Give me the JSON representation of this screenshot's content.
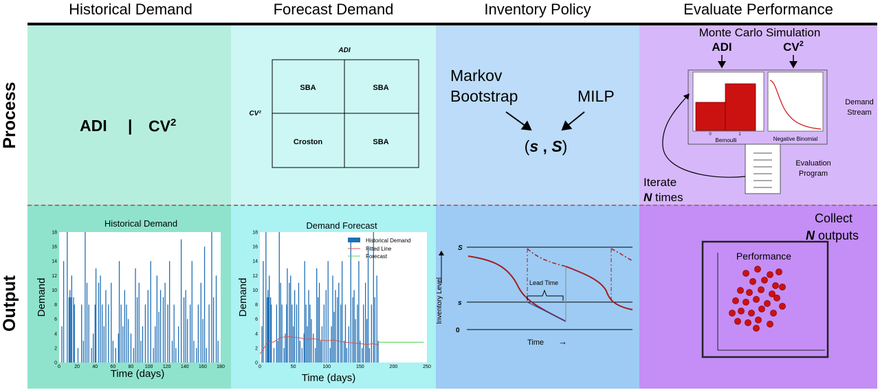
{
  "columns": {
    "historical": "Historical Demand",
    "forecast": "Forecast Demand",
    "policy": "Inventory Policy",
    "evaluate": "Evaluate Performance"
  },
  "rows": {
    "process": "Process",
    "output": "Output"
  },
  "colors": {
    "hist_process": "#b6eedd",
    "hist_output": "#8fe3cc",
    "fore_process": "#cdf7f5",
    "fore_output": "#abf2f2",
    "policy_process": "#bcdcf9",
    "policy_output": "#9dcbf4",
    "eval_process": "#d6b8fa",
    "eval_output": "#c48ef6",
    "bar": "#1f6fb5",
    "fit": "#d9534f",
    "forecast": "#5cd65c",
    "dark_red": "#a31d1d",
    "red_fill": "#cc1111"
  },
  "historical_process": {
    "adi": "ADI",
    "sep": "|",
    "cv": "CV",
    "sup": "2"
  },
  "forecast_process": {
    "top_label": "ADI",
    "side_label": "CV²",
    "cells": [
      "SBA",
      "SBA",
      "Croston",
      "SBA"
    ]
  },
  "policy_process": {
    "markov1": "Markov",
    "markov2": "Bootstrap",
    "milp": "MILP",
    "open": "(",
    "s": "s",
    "comma": " , ",
    "S": "S",
    "close": ")"
  },
  "evaluate_process": {
    "title": "Monte Carlo Simulation",
    "adi": "ADI",
    "cv": "CV",
    "sup": "2",
    "demand1": "Demand",
    "demand2": "Stream",
    "tick0": "0",
    "tick1": "1",
    "bernoulli": "Bernoulli",
    "negbin": "Negative Binomial",
    "eval1": "Evaluation",
    "eval2": "Program",
    "iterate": "Iterate",
    "n": "N",
    "times": " times"
  },
  "evaluate_output": {
    "collect": "Collect",
    "n": "N",
    "outputs": " outputs",
    "performance": "Performance"
  },
  "policy_output": {
    "S": "S",
    "s": "s",
    "zero": "0",
    "ylabel": "Inventory Level",
    "xlabel": "Time",
    "arrow": "→",
    "lead": "Lead Time"
  },
  "chart_data": [
    {
      "type": "bar",
      "title": "Historical Demand",
      "xlabel": "Time (days)",
      "ylabel": "Demand",
      "xlim": [
        0,
        180
      ],
      "ylim": [
        0,
        18
      ],
      "xticks": [
        0,
        20,
        40,
        60,
        80,
        100,
        120,
        140,
        160,
        180
      ],
      "yticks": [
        0,
        2,
        4,
        6,
        8,
        10,
        12,
        14,
        16,
        18
      ],
      "x": [
        3,
        5,
        9,
        11,
        12,
        13,
        14,
        16,
        17,
        21,
        25,
        27,
        29,
        31,
        33,
        36,
        38,
        40,
        41,
        44,
        46,
        48,
        50,
        52,
        55,
        58,
        60,
        63,
        66,
        67,
        69,
        71,
        73,
        75,
        77,
        80,
        83,
        85,
        87,
        89,
        91,
        93,
        96,
        99,
        102,
        105,
        107,
        109,
        111,
        113,
        116,
        118,
        121,
        123,
        126,
        128,
        130,
        133,
        136,
        139,
        141,
        143,
        146,
        148,
        150,
        153,
        155,
        158,
        160,
        162,
        164,
        167,
        170,
        172,
        175,
        177
      ],
      "values": [
        5,
        14,
        18,
        9,
        10,
        9,
        12,
        9,
        8,
        2,
        8,
        3,
        18,
        11,
        8,
        2,
        4,
        8,
        13,
        11,
        12,
        8,
        5,
        10,
        8,
        11,
        3,
        2,
        4,
        14,
        8,
        5,
        10,
        8,
        6,
        4,
        2,
        13,
        9,
        11,
        3,
        5,
        8,
        10,
        14,
        2,
        5,
        12,
        7,
        10,
        9,
        11,
        8,
        14,
        3,
        8,
        2,
        5,
        17,
        9,
        10,
        6,
        8,
        14,
        3,
        2,
        8,
        11,
        6,
        16,
        2,
        8,
        18,
        9,
        12,
        3
      ]
    },
    {
      "type": "bar",
      "title": "Demand Forecast",
      "xlabel": "Time (days)",
      "ylabel": "Demand",
      "xlim": [
        0,
        250
      ],
      "ylim": [
        0,
        18
      ],
      "xticks": [
        0,
        50,
        100,
        150,
        200,
        250
      ],
      "yticks": [
        0,
        2,
        4,
        6,
        8,
        10,
        12,
        14,
        16,
        18
      ],
      "legend": [
        "Historical Demand",
        "Fitted Line",
        "Forecast"
      ],
      "x": [
        3,
        5,
        9,
        11,
        12,
        13,
        14,
        16,
        17,
        21,
        25,
        27,
        29,
        31,
        33,
        36,
        38,
        40,
        41,
        44,
        46,
        48,
        50,
        52,
        55,
        58,
        60,
        63,
        66,
        67,
        69,
        71,
        73,
        75,
        77,
        80,
        83,
        85,
        87,
        89,
        91,
        93,
        96,
        99,
        102,
        105,
        107,
        109,
        111,
        113,
        116,
        118,
        121,
        123,
        126,
        128,
        130,
        133,
        136,
        139,
        141,
        143,
        146,
        148,
        150,
        153,
        155,
        158,
        160,
        162,
        164,
        167,
        170,
        172,
        175,
        177
      ],
      "values": [
        5,
        14,
        18,
        9,
        10,
        9,
        12,
        9,
        8,
        2,
        8,
        3,
        18,
        11,
        8,
        2,
        4,
        8,
        13,
        11,
        12,
        8,
        5,
        10,
        8,
        11,
        3,
        2,
        4,
        14,
        8,
        5,
        10,
        8,
        6,
        4,
        2,
        13,
        9,
        11,
        3,
        5,
        8,
        10,
        14,
        2,
        5,
        12,
        7,
        10,
        9,
        11,
        8,
        14,
        3,
        8,
        2,
        5,
        17,
        9,
        10,
        6,
        8,
        14,
        3,
        2,
        8,
        11,
        6,
        16,
        2,
        8,
        18,
        9,
        12,
        3
      ],
      "fitted": {
        "x": [
          0,
          5,
          10,
          15,
          20,
          25,
          30,
          40,
          50,
          60,
          70,
          80,
          90,
          100,
          110,
          120,
          130,
          140,
          150,
          160,
          170,
          178
        ],
        "y": [
          1.2,
          1.8,
          2.6,
          2.9,
          2.8,
          3.1,
          3.4,
          3.6,
          3.5,
          3.4,
          3.2,
          3.3,
          3.1,
          3.0,
          3.1,
          2.9,
          2.8,
          2.7,
          2.6,
          2.5,
          2.6,
          2.4
        ]
      },
      "forecast": {
        "x": [
          178,
          245
        ],
        "y": [
          2.8,
          2.8
        ]
      }
    }
  ]
}
